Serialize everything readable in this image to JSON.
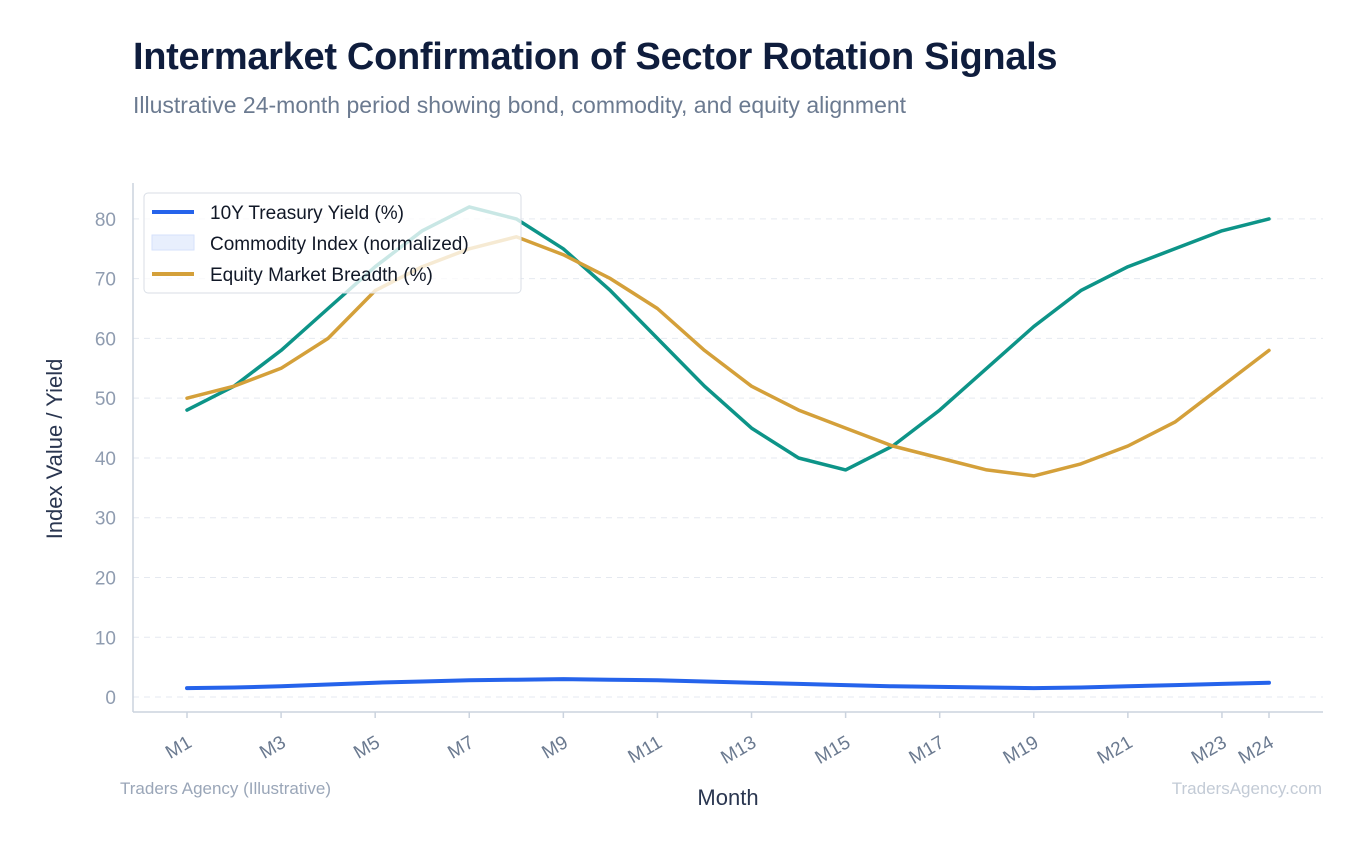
{
  "header": {
    "title": "Intermarket Confirmation of Sector Rotation Signals",
    "subtitle": "Illustrative 24-month period showing bond, commodity, and equity alignment"
  },
  "footer": {
    "source": "Traders Agency (Illustrative)",
    "watermark": "TradersAgency.com"
  },
  "chart_data": {
    "type": "line",
    "xlabel": "Month",
    "ylabel": "Index Value / Yield",
    "ylim": [
      -2.5,
      86
    ],
    "yticks": [
      0,
      10,
      20,
      30,
      40,
      50,
      60,
      70,
      80
    ],
    "grid": true,
    "legend_position": "top-left",
    "categories": [
      "M1",
      "M2",
      "M3",
      "M4",
      "M5",
      "M6",
      "M7",
      "M8",
      "M9",
      "M10",
      "M11",
      "M12",
      "M13",
      "M14",
      "M15",
      "M16",
      "M17",
      "M18",
      "M19",
      "M20",
      "M21",
      "M22",
      "M23",
      "M24"
    ],
    "xtick_labels": [
      "M1",
      "M3",
      "M5",
      "M7",
      "M9",
      "M11",
      "M13",
      "M15",
      "M17",
      "M19",
      "M21",
      "M23",
      "M24"
    ],
    "series": [
      {
        "name": "10Y Treasury Yield (%)",
        "color": "#2563eb",
        "style": "line",
        "values": [
          1.5,
          1.6,
          1.8,
          2.1,
          2.4,
          2.6,
          2.8,
          2.9,
          3.0,
          2.9,
          2.8,
          2.6,
          2.4,
          2.2,
          2.0,
          1.8,
          1.7,
          1.6,
          1.5,
          1.6,
          1.8,
          2.0,
          2.2,
          2.4
        ]
      },
      {
        "name": "Commodity Index (normalized)",
        "color": "#0d9488",
        "style": "line",
        "legend_swatch": "area",
        "values": [
          48,
          52,
          58,
          65,
          72,
          78,
          82,
          80,
          75,
          68,
          60,
          52,
          45,
          40,
          38,
          42,
          48,
          55,
          62,
          68,
          72,
          75,
          78,
          80
        ]
      },
      {
        "name": "Equity Market Breadth (%)",
        "color": "#d4a03a",
        "style": "line",
        "values": [
          50,
          52,
          55,
          60,
          68,
          72,
          75,
          77,
          74,
          70,
          65,
          58,
          52,
          48,
          45,
          42,
          40,
          38,
          37,
          39,
          42,
          46,
          52,
          58
        ]
      }
    ]
  }
}
